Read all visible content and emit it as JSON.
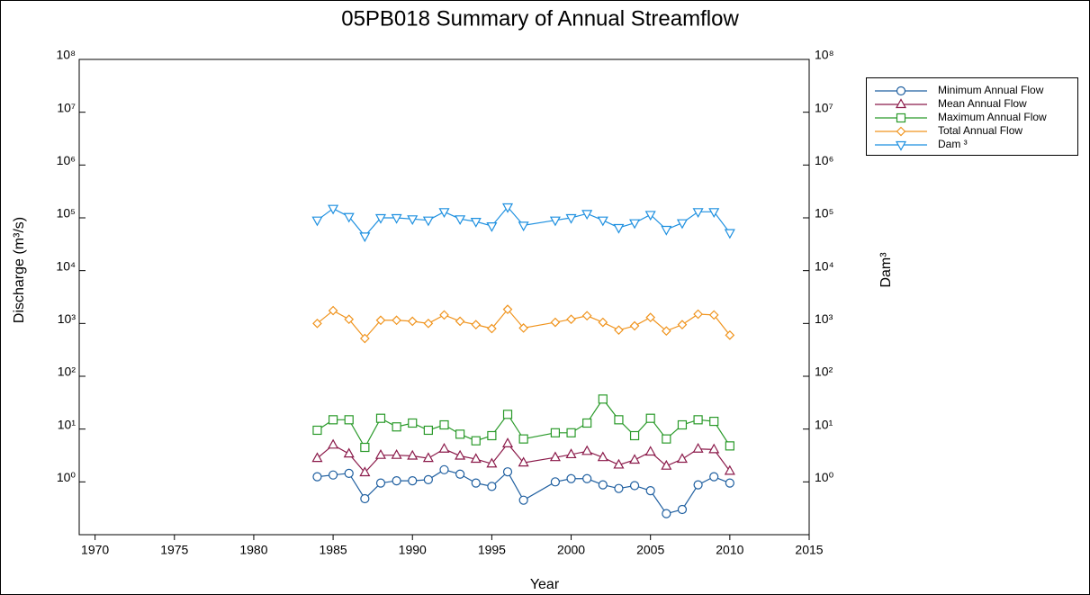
{
  "chart_data": {
    "type": "line",
    "title": "05PB018 Summary of Annual Streamflow",
    "xlabel": "Year",
    "ylabel": "Discharge (m³/s)",
    "y2label": "Dam³",
    "log_y": true,
    "legend": "right",
    "x": [
      1984,
      1985,
      1986,
      1987,
      1988,
      1989,
      1990,
      1991,
      1992,
      1993,
      1994,
      1995,
      1996,
      1997,
      1999,
      2000,
      2001,
      2002,
      2003,
      2004,
      2005,
      2006,
      2007,
      2008,
      2009,
      2010
    ],
    "xlim": [
      1969,
      2015
    ],
    "xticks": [
      1970,
      1975,
      1980,
      1985,
      1990,
      1995,
      2000,
      2005,
      2010,
      2015
    ],
    "ylim": [
      0.1,
      100000000
    ],
    "yticks": [
      {
        "value": 1,
        "label": "10⁰"
      },
      {
        "value": 10,
        "label": "10¹"
      },
      {
        "value": 100,
        "label": "10²"
      },
      {
        "value": 1000,
        "label": "10³"
      },
      {
        "value": 10000,
        "label": "10⁴"
      },
      {
        "value": 100000,
        "label": "10⁵"
      },
      {
        "value": 1000000,
        "label": "10⁶"
      },
      {
        "value": 10000000,
        "label": "10⁷"
      },
      {
        "value": 100000000,
        "label": "10⁸"
      }
    ],
    "y2lim": [
      0.1,
      100000000
    ],
    "y2ticks": [
      {
        "value": 1,
        "label": "10⁰"
      },
      {
        "value": 10,
        "label": "10¹"
      },
      {
        "value": 100,
        "label": "10²"
      },
      {
        "value": 1000,
        "label": "10³"
      },
      {
        "value": 10000,
        "label": "10⁴"
      },
      {
        "value": 100000,
        "label": "10⁵"
      },
      {
        "value": 1000000,
        "label": "10⁶"
      },
      {
        "value": 10000000,
        "label": "10⁷"
      },
      {
        "value": 100000000,
        "label": "10⁸"
      }
    ],
    "series": [
      {
        "name": "Minimum Annual Flow",
        "color": "#1f5fa0",
        "marker": "circle",
        "values": [
          1.25,
          1.35,
          1.45,
          0.48,
          0.95,
          1.05,
          1.05,
          1.1,
          1.7,
          1.4,
          0.95,
          0.82,
          1.55,
          0.45,
          1.0,
          1.15,
          1.15,
          0.88,
          0.75,
          0.85,
          0.68,
          0.25,
          0.3,
          0.88,
          1.25,
          0.95
        ]
      },
      {
        "name": "Mean Annual Flow",
        "color": "#8b1a4a",
        "marker": "triangle-up",
        "values": [
          2.8,
          5.0,
          3.4,
          1.5,
          3.2,
          3.2,
          3.1,
          2.8,
          4.2,
          3.1,
          2.7,
          2.2,
          5.3,
          2.3,
          2.9,
          3.3,
          3.8,
          2.9,
          2.1,
          2.6,
          3.7,
          2.0,
          2.7,
          4.2,
          4.1,
          1.6
        ]
      },
      {
        "name": "Maximum Annual Flow",
        "color": "#2a9a2a",
        "marker": "square",
        "values": [
          9.5,
          15,
          15,
          4.5,
          16,
          11,
          13,
          9.5,
          12,
          8,
          6,
          7.5,
          19,
          6.5,
          8.5,
          8.5,
          13,
          37,
          15,
          7.5,
          16,
          6.5,
          12,
          15,
          14,
          4.8
        ]
      },
      {
        "name": "Total Annual Flow",
        "color": "#f0941e",
        "marker": "diamond",
        "values": [
          1000,
          1750,
          1200,
          520,
          1150,
          1150,
          1100,
          1000,
          1450,
          1100,
          950,
          800,
          1850,
          820,
          1050,
          1200,
          1400,
          1050,
          750,
          900,
          1300,
          720,
          950,
          1500,
          1450,
          600
        ]
      },
      {
        "name": "Dam ³",
        "color": "#1e90e0",
        "marker": "triangle-down",
        "axis": "y2",
        "values": [
          90000,
          150000,
          105000,
          45000,
          100000,
          100000,
          95000,
          90000,
          130000,
          95000,
          85000,
          70000,
          160000,
          72000,
          90000,
          100000,
          120000,
          90000,
          65000,
          80000,
          115000,
          60000,
          80000,
          130000,
          130000,
          52000
        ]
      }
    ]
  }
}
